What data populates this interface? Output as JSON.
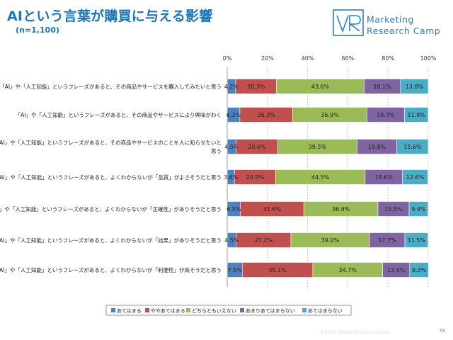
{
  "header": {
    "title": "AIという言葉が購買に与える影響",
    "subtitle": "(n=1,100)"
  },
  "brand": {
    "logo_letters": "VR",
    "line1": "Marketing",
    "line2": "Research Camp",
    "color": "#2b7fc2"
  },
  "footer": {
    "copyright": "©2017 CloudGate Corporation",
    "page_number": "78"
  },
  "chart_data": {
    "type": "bar",
    "orientation": "horizontal",
    "stacked": true,
    "xlim": [
      0,
      100
    ],
    "x_ticks": [
      "0%",
      "20%",
      "40%",
      "60%",
      "80%",
      "100%"
    ],
    "tick_position": "top",
    "legend_position": "bottom",
    "categories": [
      [
        "「AI」や「人工知能」というフレーズがあると、その商品やサービスを購入してみたいと思う"
      ],
      [
        "「AI」や「人工知能」というフレーズがあると、その商品やサービスにより興味がわく"
      ],
      [
        "AI」や「人工知能」というフレーズがあると、その商品やサービスのことを人に知らせたいと",
        "思う"
      ],
      [
        "「AI」や「人工知能」というフレーズがあると、よくわからないが「品質」がよさそうだと思う"
      ],
      [
        "AI」や「人工知能」というフレーズがあると、よくわからないが「正確性」がありそうだと思う"
      ],
      [
        "「AI」や「人工知能」というフレーズがあると、よくわからないが「効果」がありそうだと思う"
      ],
      [
        "「AI」や「人工知能」というフレーズがあると、よくわからないが「利便性」が高そうだと思う"
      ]
    ],
    "series": [
      {
        "name": "あてはまる",
        "color": "#4f81bd",
        "values": [
          4.2,
          6.3,
          4.5,
          3.6,
          6.5,
          4.5,
          7.5
        ],
        "labels": [
          "4.2%",
          "6.3%",
          "4.5%",
          "3.6%",
          "6.5%",
          "4.5%",
          "7.5%"
        ]
      },
      {
        "name": "ややあてはまる",
        "color": "#c0504d",
        "values": [
          20.3,
          26.3,
          20.6,
          20.5,
          31.6,
          27.2,
          35.1
        ],
        "labels": [
          "20.3%",
          "26.3%",
          "20.6%",
          "20.5%",
          "31.6%",
          "27.2%",
          "35.1%"
        ]
      },
      {
        "name": "どちらともいえない",
        "color": "#9bbb59",
        "values": [
          43.6,
          36.9,
          39.5,
          44.5,
          36.9,
          39.0,
          34.7
        ],
        "labels": [
          "43.6%",
          "36.9%",
          "39.5%",
          "44.5%",
          "36.9%",
          "39.0%",
          "34.7%"
        ]
      },
      {
        "name": "あまりあてはまらない",
        "color": "#8064a2",
        "values": [
          18.1,
          18.7,
          19.8,
          18.6,
          15.5,
          17.7,
          13.5
        ],
        "labels": [
          "18.1%",
          "18.7%",
          "19.8%",
          "18.6%",
          "15.5%",
          "17.7%",
          "13.5%"
        ]
      },
      {
        "name": "あてはまらない",
        "color": "#4bacc6",
        "values": [
          13.8,
          11.8,
          15.6,
          12.6,
          9.4,
          11.5,
          9.3
        ],
        "labels": [
          "13.8%",
          "11.8%",
          "15.6%",
          "12.6%",
          "9.4%",
          "11.5%",
          "9.3%"
        ]
      }
    ]
  }
}
